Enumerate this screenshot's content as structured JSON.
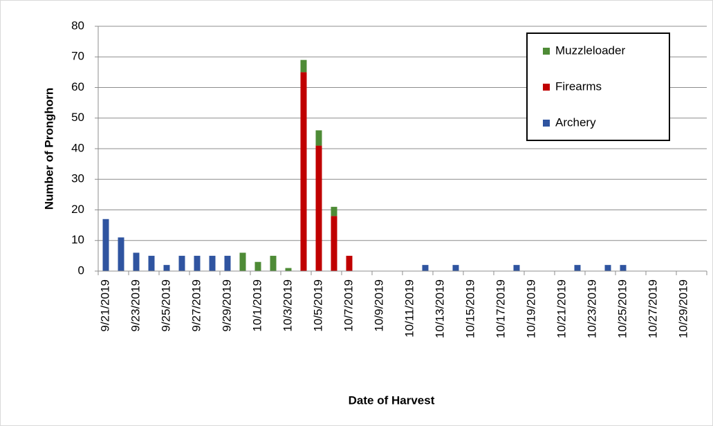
{
  "chart_data": {
    "type": "stacked-bar",
    "x_label": "Date of Harvest",
    "y_label": "Number of Pronghorn",
    "categories": [
      "9/21/2019",
      null,
      "9/23/2019",
      null,
      "9/25/2019",
      null,
      "9/27/2019",
      null,
      "9/29/2019",
      null,
      "10/1/2019",
      null,
      "10/3/2019",
      null,
      "10/5/2019",
      null,
      "10/7/2019",
      null,
      "10/9/2019",
      null,
      "10/11/2019",
      null,
      "10/13/2019",
      null,
      "10/15/2019",
      null,
      "10/17/2019",
      null,
      "10/19/2019",
      null,
      "10/21/2019",
      null,
      "10/23/2019",
      null,
      "10/25/2019",
      null,
      "10/27/2019",
      null,
      "10/29/2019",
      null
    ],
    "series": [
      {
        "name": "Archery",
        "color": "#2f54a0",
        "values": [
          17,
          11,
          6,
          5,
          2,
          5,
          5,
          5,
          5,
          0,
          0,
          0,
          0,
          0,
          0,
          0,
          0,
          0,
          0,
          0,
          0,
          2,
          0,
          2,
          0,
          0,
          0,
          2,
          0,
          0,
          0,
          2,
          0,
          2,
          2,
          0,
          0,
          0,
          0,
          0
        ]
      },
      {
        "name": "Firearms",
        "color": "#c00000",
        "values": [
          0,
          0,
          0,
          0,
          0,
          0,
          0,
          0,
          0,
          0,
          0,
          0,
          0,
          65,
          41,
          18,
          5,
          0,
          0,
          0,
          0,
          0,
          0,
          0,
          0,
          0,
          0,
          0,
          0,
          0,
          0,
          0,
          0,
          0,
          0,
          0,
          0,
          0,
          0,
          0
        ]
      },
      {
        "name": "Muzzleloader",
        "color": "#4e8b36",
        "values": [
          0,
          0,
          0,
          0,
          0,
          0,
          0,
          0,
          0,
          6,
          3,
          5,
          1,
          4,
          5,
          3,
          0,
          0,
          0,
          0,
          0,
          0,
          0,
          0,
          0,
          0,
          0,
          0,
          0,
          0,
          0,
          0,
          0,
          0,
          0,
          0,
          0,
          0,
          0,
          0
        ]
      }
    ],
    "ylim": [
      0,
      80
    ],
    "yticks": [
      0,
      10,
      20,
      30,
      40,
      50,
      60,
      70,
      80
    ],
    "grid": true,
    "legend": "upper right"
  }
}
